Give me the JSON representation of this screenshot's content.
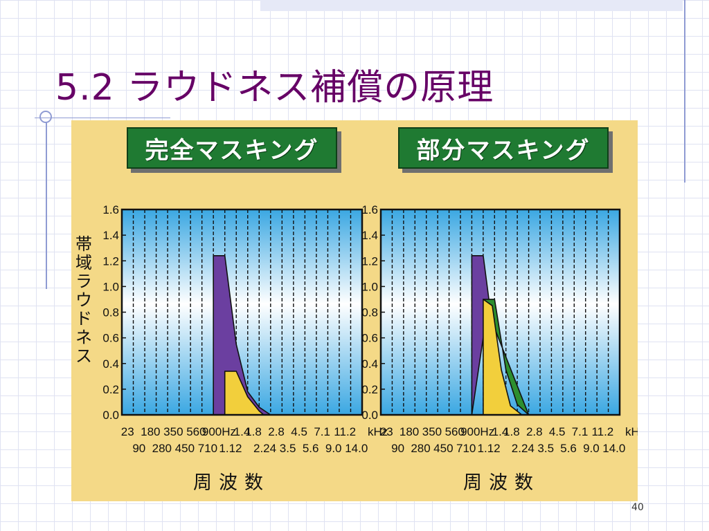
{
  "slide": {
    "title": "5.2 ラウドネス補償の原理",
    "page_number": "40"
  },
  "figure": {
    "background_color": "#f4d987",
    "ylabel": "帯域ラウドネス",
    "xlabel": "周波数",
    "colors": {
      "banner": "#1f7a32",
      "purple": "#6b3fa0",
      "yellow": "#f2cf3c",
      "green": "#2d8f2f"
    }
  },
  "chart_data": [
    {
      "type": "area",
      "title": "完全マスキング",
      "xlabel": "周波数",
      "ylabel": "帯域ラウドネス",
      "ylim": [
        0,
        1.6
      ],
      "y_ticks": [
        "0.0",
        "0.2",
        "0.4",
        "0.6",
        "0.8",
        "1.0",
        "1.2",
        "1.4",
        "1.6"
      ],
      "x_ticks_upper": [
        "23",
        "180",
        "350",
        "560",
        "900Hz",
        "1.4",
        "1.8",
        "2.8",
        "4.5",
        "7.1",
        "11.2",
        "kHz"
      ],
      "x_ticks_lower": [
        "90",
        "280",
        "450",
        "710",
        "1.12",
        "2.24",
        "3.5",
        "5.6",
        "9.0",
        "14.0"
      ],
      "x_categories": [
        "23",
        "90",
        "180",
        "280",
        "350",
        "450",
        "560",
        "710",
        "900Hz",
        "1.12",
        "1.4",
        "1.8",
        "2.24",
        "2.8",
        "3.5",
        "4.5",
        "5.6",
        "7.1",
        "9.0",
        "11.2",
        "14.0"
      ],
      "series": [
        {
          "color": "purple",
          "x": [
            8,
            8,
            9,
            10,
            11,
            12,
            13
          ],
          "y": [
            0,
            1.24,
            1.24,
            0.55,
            0.18,
            0.06,
            0
          ]
        },
        {
          "color": "yellow",
          "x": [
            9,
            9,
            10,
            11,
            12,
            12.4
          ],
          "y": [
            0,
            0.34,
            0.34,
            0.14,
            0.03,
            0
          ]
        }
      ]
    },
    {
      "type": "area",
      "title": "部分マスキング",
      "xlabel": "周波数",
      "ylabel": "帯域ラウドネス",
      "ylim": [
        0,
        1.6
      ],
      "y_ticks": [
        "0.0",
        "0.2",
        "0.4",
        "0.6",
        "0.8",
        "1.0",
        "1.2",
        "1.4",
        "1.6"
      ],
      "x_ticks_upper": [
        "23",
        "180",
        "350",
        "560",
        "900Hz",
        "1.4",
        "1.8",
        "2.8",
        "4.5",
        "7.1",
        "11.2",
        "kHz"
      ],
      "x_ticks_lower": [
        "90",
        "280",
        "450",
        "710",
        "1.12",
        "2.24",
        "3.5",
        "5.6",
        "9.0",
        "14.0"
      ],
      "x_categories": [
        "23",
        "90",
        "180",
        "280",
        "350",
        "450",
        "560",
        "710",
        "900Hz",
        "1.12",
        "1.4",
        "1.8",
        "2.24",
        "2.8",
        "3.5",
        "4.5",
        "5.6",
        "7.1",
        "9.0",
        "11.2",
        "14.0"
      ],
      "series": [
        {
          "color": "purple",
          "x": [
            8,
            8,
            9,
            9.5
          ],
          "y": [
            0,
            1.24,
            1.24,
            0.9
          ]
        },
        {
          "color": "green",
          "x": [
            9,
            10,
            11,
            12,
            13
          ],
          "y": [
            0.9,
            0.9,
            0.35,
            0.08,
            0
          ]
        },
        {
          "color": "yellow",
          "x": [
            9,
            9,
            9.8,
            10.6,
            11.4,
            12.4
          ],
          "y": [
            0,
            0.9,
            0.85,
            0.35,
            0.07,
            0
          ]
        }
      ]
    }
  ]
}
